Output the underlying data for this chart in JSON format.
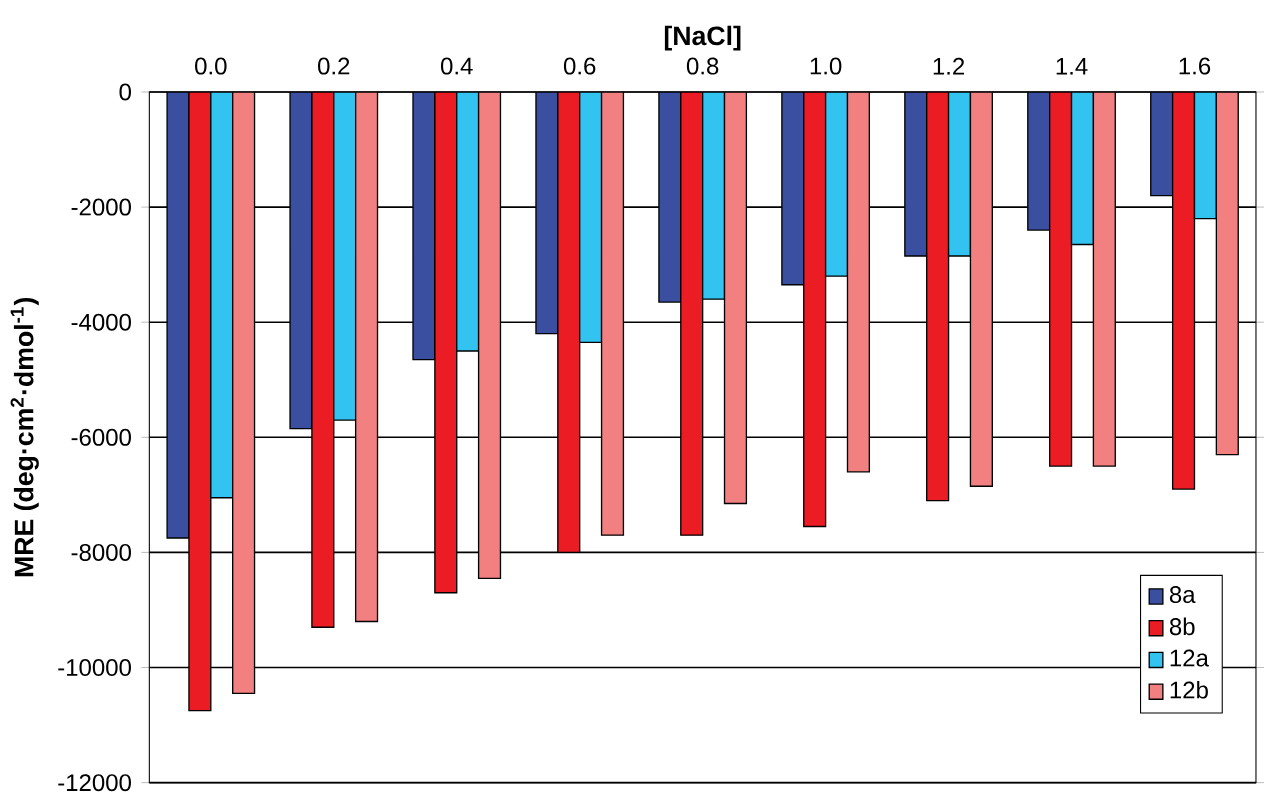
{
  "chart_data": {
    "type": "bar",
    "xlabel": "[NaCl]",
    "ylabel": "MRE (deg·cm$^{2}$·dmol$^{-1}$)",
    "categories": [
      "0.0",
      "0.2",
      "0.4",
      "0.6",
      "0.8",
      "1.0",
      "1.2",
      "1.4",
      "1.6"
    ],
    "series": [
      {
        "name": "8a",
        "color": "#3a4fa0",
        "values": [
          -7750,
          -5850,
          -4650,
          -4200,
          -3650,
          -3350,
          -2850,
          -2400,
          -1800
        ]
      },
      {
        "name": "8b",
        "color": "#ec1c24",
        "values": [
          -10750,
          -9300,
          -8700,
          -8000,
          -7700,
          -7550,
          -7100,
          -6500,
          -6900
        ]
      },
      {
        "name": "12a",
        "color": "#33c3f0",
        "values": [
          -7050,
          -5700,
          -4500,
          -4350,
          -3600,
          -3200,
          -2850,
          -2650,
          -2200
        ]
      },
      {
        "name": "12b",
        "color": "#f28080",
        "values": [
          -10450,
          -9200,
          -8450,
          -7700,
          -7150,
          -6600,
          -6850,
          -6500,
          -6300
        ]
      }
    ],
    "ylim": [
      -12000,
      0
    ],
    "yticks": [
      -12000,
      -10000,
      -8000,
      -6000,
      -4000,
      -2000,
      0
    ],
    "grid": "y",
    "legend": "bottom right"
  }
}
